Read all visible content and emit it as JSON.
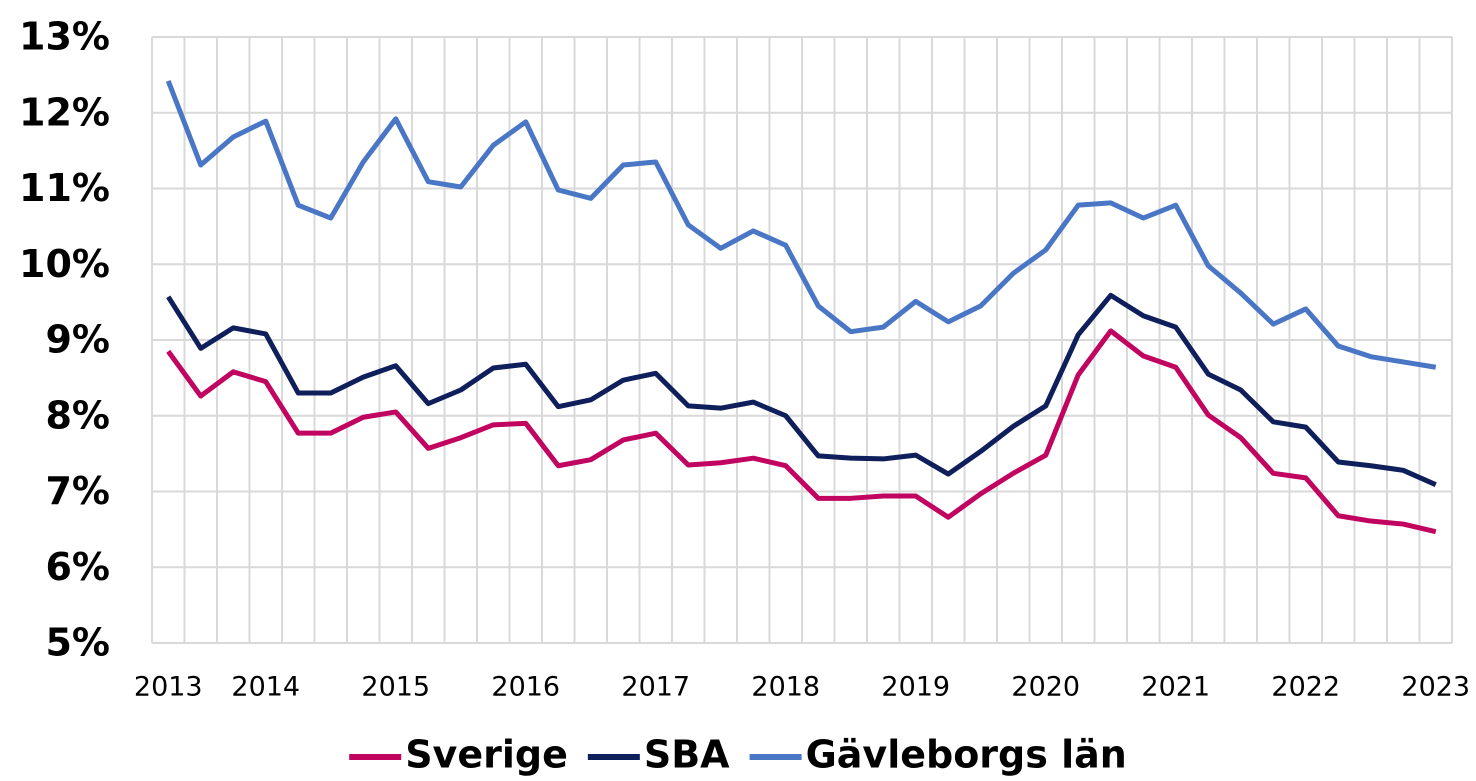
{
  "chart_data": {
    "type": "line",
    "categories": [
      "2013",
      null,
      null,
      "2014",
      null,
      null,
      null,
      "2015",
      null,
      null,
      null,
      "2016",
      null,
      null,
      null,
      "2017",
      null,
      null,
      null,
      "2018",
      null,
      null,
      null,
      "2019",
      null,
      null,
      null,
      "2020",
      null,
      null,
      null,
      "2021",
      null,
      null,
      null,
      "2022",
      null,
      null,
      null,
      "2023"
    ],
    "series": [
      {
        "name": "Sverige",
        "color": "#c0045f",
        "values": [
          8.85,
          8.26,
          8.58,
          8.45,
          7.77,
          7.77,
          7.98,
          8.05,
          7.57,
          7.71,
          7.88,
          7.9,
          7.34,
          7.42,
          7.68,
          7.77,
          7.35,
          7.38,
          7.44,
          7.34,
          6.91,
          6.91,
          6.94,
          6.94,
          6.66,
          6.97,
          7.24,
          7.48,
          8.54,
          9.12,
          8.79,
          8.64,
          8.01,
          7.71,
          7.24,
          7.18,
          6.68,
          6.61,
          6.57,
          6.47
        ]
      },
      {
        "name": "SBA",
        "color": "#0e1f5b",
        "values": [
          9.57,
          8.89,
          9.16,
          9.08,
          8.3,
          8.3,
          8.51,
          8.66,
          8.16,
          8.34,
          8.63,
          8.68,
          8.12,
          8.21,
          8.47,
          8.56,
          8.13,
          8.1,
          8.18,
          8.0,
          7.47,
          7.44,
          7.43,
          7.48,
          7.23,
          7.53,
          7.86,
          8.13,
          9.07,
          9.59,
          9.32,
          9.17,
          8.55,
          8.34,
          7.92,
          7.85,
          7.39,
          7.34,
          7.28,
          7.09
        ]
      },
      {
        "name": "Gävleborgs län",
        "color": "#4a76c6",
        "values": [
          12.42,
          11.31,
          11.68,
          11.89,
          10.78,
          10.61,
          11.35,
          11.92,
          11.09,
          11.02,
          11.57,
          11.88,
          10.98,
          10.87,
          11.31,
          11.35,
          10.52,
          10.21,
          10.44,
          10.25,
          9.45,
          9.11,
          9.17,
          9.51,
          9.24,
          9.45,
          9.88,
          10.19,
          10.78,
          10.81,
          10.61,
          10.78,
          9.98,
          9.62,
          9.21,
          9.41,
          8.92,
          8.78,
          8.71,
          8.64
        ]
      }
    ],
    "ylim": [
      5,
      13
    ],
    "yticks": [
      {
        "value": 5,
        "label": "5%"
      },
      {
        "value": 6,
        "label": "6%"
      },
      {
        "value": 7,
        "label": "7%"
      },
      {
        "value": 8,
        "label": "8%"
      },
      {
        "value": 9,
        "label": "9%"
      },
      {
        "value": 10,
        "label": "10%"
      },
      {
        "value": 11,
        "label": "11%"
      },
      {
        "value": 12,
        "label": "12%"
      },
      {
        "value": 13,
        "label": "13%"
      }
    ],
    "grid": true,
    "legend": "bottom"
  }
}
